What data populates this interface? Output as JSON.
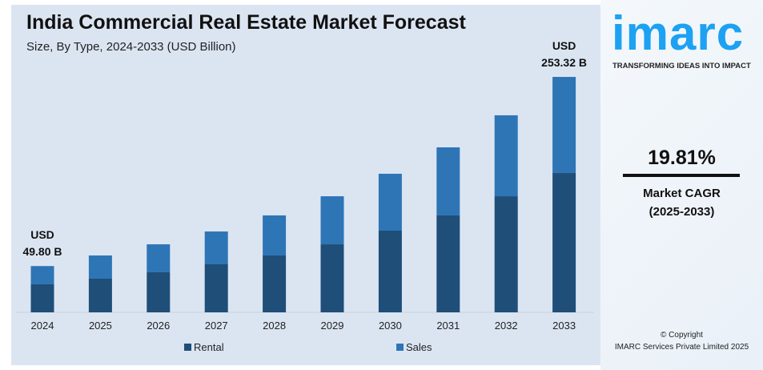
{
  "header": {
    "title": "India Commercial Real Estate Market Forecast",
    "subtitle": "Size, By Type, 2024-2033 (USD Billion)"
  },
  "brand": {
    "logo": "imarc",
    "tagline": "TRANSFORMING IDEAS INTO IMPACT"
  },
  "cagr": {
    "value": "19.81%",
    "label": "Market CAGR",
    "period": "(2025-2033)"
  },
  "footer": {
    "line1": "© Copyright",
    "line2": "IMARC Services Private Limited 2025"
  },
  "chart_data": {
    "type": "bar",
    "stacked": true,
    "title": "India Commercial Real Estate Market Forecast",
    "subtitle": "Size, By Type, 2024-2033 (USD Billion)",
    "categories": [
      "2024",
      "2025",
      "2026",
      "2027",
      "2028",
      "2029",
      "2030",
      "2031",
      "2032",
      "2033"
    ],
    "series": [
      {
        "name": "Rental",
        "color": "#1f4e79",
        "values": [
          30.2,
          36.2,
          43.1,
          51.7,
          61.2,
          73.2,
          87.9,
          104.3,
          124.9,
          149.9
        ]
      },
      {
        "name": "Sales",
        "color": "#2e75b6",
        "values": [
          19.6,
          25.0,
          30.1,
          35.3,
          43.1,
          51.7,
          61.2,
          73.2,
          87.1,
          103.4
        ]
      }
    ],
    "annotations": [
      {
        "category": "2024",
        "line1": "USD",
        "line2": "49.80 B"
      },
      {
        "category": "2033",
        "line1": "USD",
        "line2": "253.32 B"
      }
    ],
    "ylim": [
      0,
      253.32
    ],
    "grid": false,
    "legend": "bottom"
  }
}
